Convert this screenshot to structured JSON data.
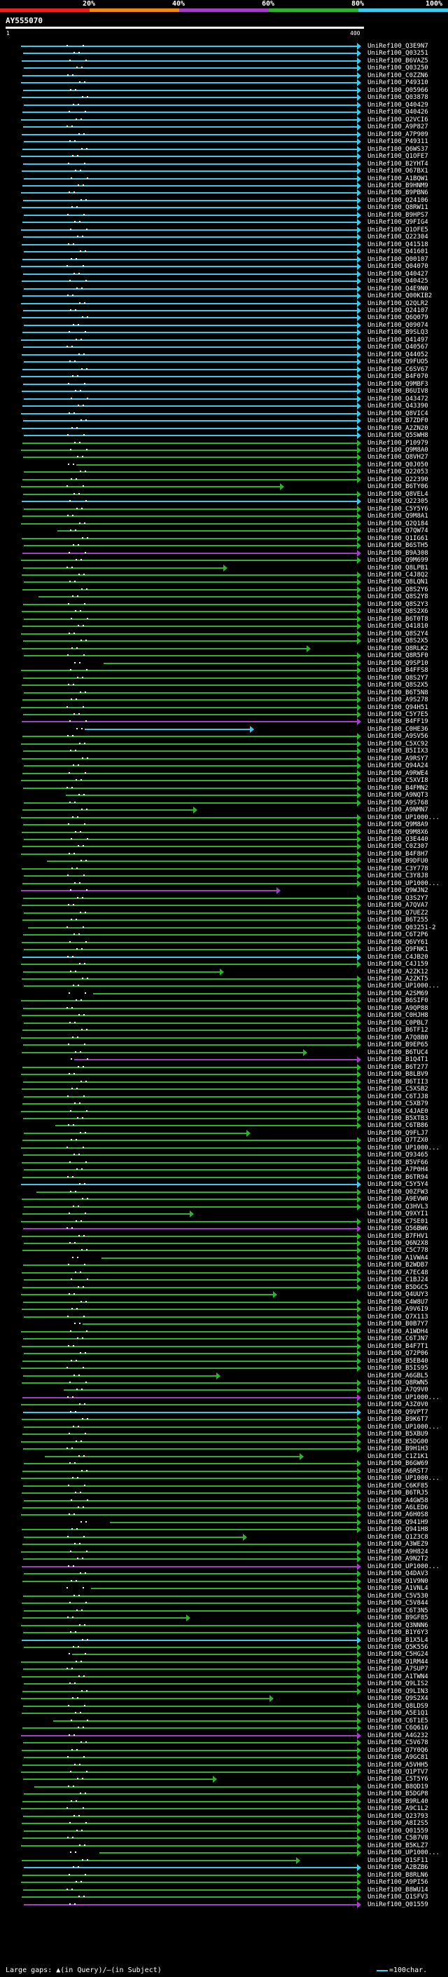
{
  "header": {
    "scale_labels": [
      "20%",
      "40%",
      "60%",
      "80%",
      "100%"
    ],
    "query_id": "AY555070",
    "ruler_start": "1",
    "ruler_end": "400"
  },
  "colors": {
    "band_20": "#e82020",
    "band_40": "#ee8a1a",
    "band_60": "#a040c0",
    "band_80": "#30b030",
    "band_100": "#40c8e8"
  },
  "hits": [
    "UniRef100_Q3E9N7",
    "UniRef100_Q03251",
    "UniRef100_B6VAZ5",
    "UniRef100_Q03250",
    "UniRef100_C0ZZN6",
    "UniRef100_P49310",
    "UniRef100_Q05966",
    "UniRef100_Q03878",
    "UniRef100_Q40429",
    "UniRef100_Q40426",
    "UniRef100_Q2VCI6",
    "UniRef100_A9P827",
    "UniRef100_A7P909",
    "UniRef100_P49311",
    "UniRef100_Q6WS37",
    "UniRef100_Q1OFE7",
    "UniRef100_B2YHT4",
    "UniRef100_O67BX1",
    "UniRef100_A1BQW1",
    "UniRef100_B9HNM9",
    "UniRef100_B9PBN6",
    "UniRef100_Q24106",
    "UniRef100_Q8RW11",
    "UniRef100_B9HPS7",
    "UniRef100_Q9FIG4",
    "UniRef100_Q1OFE5",
    "UniRef100_Q22304",
    "UniRef100_Q41518",
    "UniRef100_Q41601",
    "UniRef100_Q00107",
    "UniRef100_Q04070",
    "UniRef100_Q40427",
    "UniRef100_Q40425",
    "UniRef100_Q4E9N0",
    "UniRef100_Q00KIB2",
    "UniRef100_Q2QLR2",
    "UniRef100_Q24107",
    "UniRef100_Q6Q079",
    "UniRef100_Q09074",
    "UniRef100_B9SLQ3",
    "UniRef100_Q41497",
    "UniRef100_Q40567",
    "UniRef100_Q44052",
    "UniRef100_Q9FUO5",
    "UniRef100_C6SV67",
    "UniRef100_B4F070",
    "UniRef100_Q9MBF3",
    "UniRef100_B6UIV8",
    "UniRef100_Q43472",
    "UniRef100_Q43390",
    "UniRef100_Q8VIC4",
    "UniRef100_B7ZDF0",
    "UniRef100_A2ZN20",
    "UniRef100_Q5SWH8",
    "UniRef100_P10979",
    "UniRef100_Q9M8A0",
    "UniRef100_Q8VH27",
    "UniRef100_Q0J050",
    "UniRef100_Q22053",
    "UniRef100_Q22390",
    "UniRef100_B6TY06",
    "UniRef100_Q8VEL4",
    "UniRef100_Q22305",
    "UniRef100_C5Y5Y6",
    "UniRef100_Q9M8A1",
    "UniRef100_Q2Q184",
    "UniRef100_Q7QW74",
    "UniRef100_Q1IG61",
    "UniRef100_B6STH5",
    "UniRef100_B9A308",
    "UniRef100_Q9M699",
    "UniRef100_Q8LPB1",
    "UniRef100_C4J8Q2",
    "UniRef100_Q8LQN1",
    "UniRef100_Q8S2Y6",
    "UniRef100_Q8S2Y8",
    "UniRef100_Q8S2Y3",
    "UniRef100_Q8S2X6",
    "UniRef100_B6T0T8",
    "UniRef100_Q41810",
    "UniRef100_Q8S2Y4",
    "UniRef100_Q8S2X5",
    "UniRef100_Q8RLK2",
    "UniRef100_Q8R5F0",
    "UniRef100_Q9SP10",
    "UniRef100_B4FFS8",
    "UniRef100_Q8S2Y7",
    "UniRef100_Q8S2X5",
    "UniRef100_B6T5N8",
    "UniRef100_A9S278",
    "UniRef100_Q94H51",
    "UniRef100_C5Y7E5",
    "UniRef100_B4FF19",
    "UniRef100_C0HE36",
    "UniRef100_A9SV56",
    "UniRef100_C5XC92",
    "UniRef100_B5IIX3",
    "UniRef100_A9RSY7",
    "UniRef100_Q94A24",
    "UniRef100_A9RWE4",
    "UniRef100_C5XVI8",
    "UniRef100_B4FMN2",
    "UniRef100_A9NQT3",
    "UniRef100_A9S768",
    "UniRef100_A9NMN7",
    "UniRef100_UP1000...",
    "UniRef100_Q9M8A9",
    "UniRef100_Q9M8X6",
    "UniRef100_Q3E440",
    "UniRef100_C0Z307",
    "UniRef100_B4F8H7",
    "UniRef100_B9DFU0",
    "UniRef100_C3Y778",
    "UniRef100_C3Y8J8",
    "UniRef100_UP1000...",
    "UniRef100_Q9WJN2",
    "UniRef100_Q3S2Y7",
    "UniRef100_A7QVA7",
    "UniRef100_Q7UEZ2",
    "UniRef100_B6T255",
    "UniRef100_Q03251-2",
    "UniRef100_C6T2P6",
    "UniRef100_Q6VY61",
    "UniRef100_Q9FNK1",
    "UniRef100_C4JB20",
    "UniRef100_C4J159",
    "UniRef100_A2ZK12",
    "UniRef100_A2ZKT5",
    "UniRef100_UP1000...",
    "UniRef100_A2SM69",
    "UniRef100_B6SIF0",
    "UniRef100_A9QP88",
    "UniRef100_C0HJH8",
    "UniRef100_C0PBL7",
    "UniRef100_B6TF12",
    "UniRef100_A7Q8B0",
    "UniRef100_B9EP65",
    "UniRef100_B6TUC4",
    "UniRef100_B1Q4T1",
    "UniRef100_B6T277",
    "UniRef100_B8LBV9",
    "UniRef100_B6TII3",
    "UniRef100_C5XSB2",
    "UniRef100_C6TJJ8",
    "UniRef100_C5XB79",
    "UniRef100_C4JAE0",
    "UniRef100_B5XTB3",
    "UniRef100_C6TB86",
    "UniRef100_Q9FLJ7",
    "UniRef100_Q7TZX0",
    "UniRef100_UP1000...",
    "UniRef100_Q93465",
    "UniRef100_B5VF66",
    "UniRef100_A7P0H4",
    "UniRef100_B6TR94",
    "UniRef100_C5Y5Y4",
    "UniRef100_Q0ZFW3",
    "UniRef100_A9EVW0",
    "UniRef100_Q3HVL3",
    "UniRef100_Q9XYI1",
    "UniRef100_C7SE01",
    "UniRef100_Q56BW6",
    "UniRef100_B7FHV1",
    "UniRef100_Q6N2X8",
    "UniRef100_C5C778",
    "UniRef100_A1VWA4",
    "UniRef100_B2WDB7",
    "UniRef100_A7EC48",
    "UniRef100_C1BJ24",
    "UniRef100_B5DGC5",
    "UniRef100_Q4UUY3",
    "UniRef100_C4W8U7",
    "UniRef100_A9V6I9",
    "UniRef100_Q7X113",
    "UniRef100_B0B7Y7",
    "UniRef100_A1WDH4",
    "UniRef100_C6TJN7",
    "UniRef100_B4F7T1",
    "UniRef100_Q72P06",
    "UniRef100_B5EB40",
    "UniRef100_B5IS95",
    "UniRef100_A6GBL5",
    "UniRef100_Q8RWN5",
    "UniRef100_A7Q9V0",
    "UniRef100_UP1000...",
    "UniRef100_A3Z0V0",
    "UniRef100_Q9VPT7",
    "UniRef100_B9K6T7",
    "UniRef100_UP1000...",
    "UniRef100_B5XBU9",
    "UniRef100_B5DG00",
    "UniRef100_B9H1H3",
    "UniRef100_C1Z1K1",
    "UniRef100_B6GW69",
    "UniRef100_A6RST7",
    "UniRef100_UP1000...",
    "UniRef100_C6KF85",
    "UniRef100_B6TRJ5",
    "UniRef100_A4GW58",
    "UniRef100_A6LED6",
    "UniRef100_A6H0S8",
    "UniRef100_Q941H9",
    "UniRef100_Q941H8",
    "UniRef100_Q1Z3C8",
    "UniRef100_A3WEZ9",
    "UniRef100_A9H824",
    "UniRef100_A9N2T2",
    "UniRef100_UP1000...",
    "UniRef100_Q4DAV3",
    "UniRef100_Q1V9N0",
    "UniRef100_A1VNL4",
    "UniRef100_C5V530",
    "UniRef100_C5V844",
    "UniRef100_C6T3N5",
    "UniRef100_B9GF85",
    "UniRef100_Q3NNN6",
    "UniRef100_B1Y6Y3",
    "UniRef100_B1X5L4",
    "UniRef100_Q5K556",
    "UniRef100_C5HG24",
    "UniRef100_Q1RM44",
    "UniRef100_A7SUP7",
    "UniRef100_A1TWN4",
    "UniRef100_Q9LIS2",
    "UniRef100_Q9LIN3",
    "UniRef100_Q9S2X4",
    "UniRef100_Q8LDS9",
    "UniRef100_A5E1Q1",
    "UniRef100_C6T1E5",
    "UniRef100_C6Q616",
    "UniRef100_A4G232",
    "UniRef100_C5V678",
    "UniRef100_Q7Y0Q6",
    "UniRef100_A9GC81",
    "UniRef100_A5VHH5",
    "UniRef100_Q1PTV7",
    "UniRef100_C5T5Y6",
    "UniRef100_B8QD19",
    "UniRef100_B5DGP8",
    "UniRef100_B9RL40",
    "UniRef100_A9C1L2",
    "UniRef100_Q23793",
    "UniRef100_A8I2S5",
    "UniRef100_Q01559",
    "UniRef100_C5B7V8",
    "UniRef100_B5KLZ7",
    "UniRef100_UP1000...",
    "UniRef100_Q1SF11",
    "UniRef100_A2BZB6",
    "UniRef100_B8RLN6",
    "UniRef100_A9PI56",
    "UniRef100_B8WU14",
    "UniRef100_Q1SFV3",
    "UniRef100_Q01559"
  ],
  "legend": {
    "gaps_text": "Large gaps: ▲(in Query)/—(in Subject)",
    "scale_text": "=100char."
  }
}
